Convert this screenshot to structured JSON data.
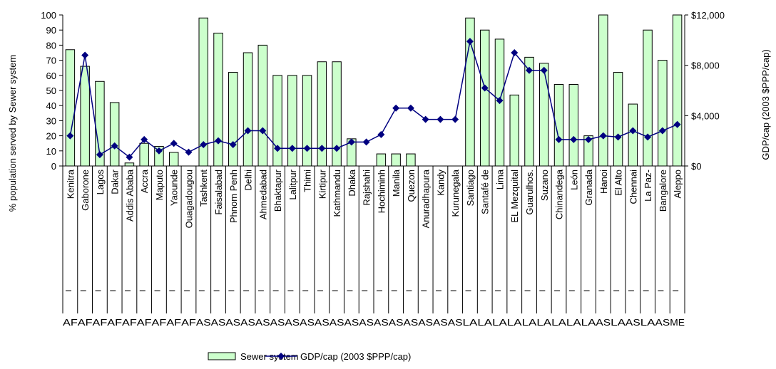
{
  "chart_data": {
    "type": "bar",
    "categories": [
      "Kenitra",
      "Gaborone",
      "Lagos",
      "Dakar",
      "Addis Ababa",
      "Accra",
      "Maputo",
      "Yaounde",
      "Ouagadougou",
      "Tashkent",
      "Faisalabad",
      "Phnom Penh",
      "Delhi",
      "Ahmedabad",
      "Bhaktapur",
      "Lalitpur",
      "Thimi",
      "Kirtipur",
      "Kathmandu",
      "Dhaka",
      "Rajshahi",
      "Hochiminh",
      "Manila",
      "Quezon",
      "Anuradhapura",
      "Kandy",
      "Kurunegala",
      "Santiago",
      "Santafé de",
      "Lima",
      "EL Mezquital",
      "Guarulhos.",
      "Suzano",
      "Chinandega",
      "León",
      "Granada",
      "Hanoi",
      "El Alto",
      "Chennai",
      "La Paz-",
      "Bangalore",
      "Aleppo"
    ],
    "regions": [
      "AF",
      "AF",
      "AF",
      "AF",
      "AF",
      "AF",
      "AF",
      "AF",
      "AF",
      "AS",
      "AS",
      "AS",
      "AS",
      "AS",
      "AS",
      "AS",
      "AS",
      "AS",
      "AS",
      "AS",
      "AS",
      "AS",
      "AS",
      "AS",
      "AS",
      "AS",
      "AS",
      "LA",
      "LA",
      "LA",
      "LA",
      "LA",
      "LA",
      "LA",
      "LA",
      "LA",
      "AS",
      "LA",
      "AS",
      "LA",
      "AS",
      "ME"
    ],
    "y_label": "% population served by Sewer system",
    "y2_label": "GDP/cap (2003 $PPP/cap)",
    "series": [
      {
        "name": "Sewer system",
        "type": "bar",
        "color": "#ccffcc",
        "values": [
          77,
          66,
          56,
          42,
          2,
          15,
          13,
          9,
          0,
          98,
          88,
          62,
          75,
          80,
          60,
          60,
          60,
          69,
          69,
          18,
          0,
          8,
          8,
          8,
          0,
          0,
          0,
          98,
          90,
          84,
          47,
          72,
          68,
          54,
          54,
          20,
          100,
          62,
          41,
          90,
          70,
          100
        ]
      },
      {
        "name": "GDP/cap (2003 $PPP/cap)",
        "type": "line",
        "axis": "y2",
        "color": "#000080",
        "values": [
          2400,
          8800,
          900,
          1600,
          700,
          2100,
          1200,
          1800,
          1100,
          1700,
          2000,
          1700,
          2800,
          2800,
          1400,
          1400,
          1400,
          1400,
          1400,
          1900,
          1900,
          2500,
          4600,
          4600,
          3700,
          3700,
          3700,
          9900,
          6200,
          5200,
          9000,
          7600,
          7600,
          2100,
          2100,
          2100,
          2400,
          2300,
          2800,
          2300,
          2800,
          3300
        ]
      }
    ],
    "ylim": [
      0,
      100
    ],
    "yticks": [
      0,
      10,
      20,
      30,
      40,
      50,
      60,
      70,
      80,
      90,
      100
    ],
    "y2lim": [
      0,
      12000
    ],
    "y2ticks": [
      {
        "value": 0,
        "label": "$0"
      },
      {
        "value": 4000,
        "label": "$4,000"
      },
      {
        "value": 8000,
        "label": "$8,000"
      },
      {
        "value": 12000,
        "label": "$12,000"
      }
    ]
  }
}
